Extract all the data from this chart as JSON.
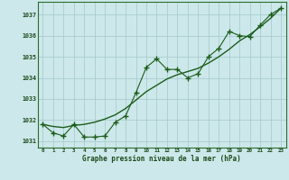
{
  "title": "Graphe pression niveau de la mer (hPa)",
  "background_color": "#cde8ea",
  "grid_color": "#a8cdd0",
  "line_color": "#1a5c1a",
  "xlim": [
    -0.5,
    23.5
  ],
  "ylim": [
    1030.7,
    1037.6
  ],
  "yticks": [
    1031,
    1032,
    1033,
    1034,
    1035,
    1036,
    1037
  ],
  "xticks": [
    0,
    1,
    2,
    3,
    4,
    5,
    6,
    7,
    8,
    9,
    10,
    11,
    12,
    13,
    14,
    15,
    16,
    17,
    18,
    19,
    20,
    21,
    22,
    23
  ],
  "hours": [
    0,
    1,
    2,
    3,
    4,
    5,
    6,
    7,
    8,
    9,
    10,
    11,
    12,
    13,
    14,
    15,
    16,
    17,
    18,
    19,
    20,
    21,
    22,
    23
  ],
  "pressure_main": [
    1031.8,
    1031.4,
    1031.25,
    1031.8,
    1031.2,
    1031.2,
    1031.25,
    1031.9,
    1032.2,
    1033.3,
    1034.5,
    1034.9,
    1034.4,
    1034.4,
    1034.0,
    1034.2,
    1035.0,
    1035.4,
    1036.2,
    1036.0,
    1035.95,
    1036.5,
    1037.0,
    1037.3
  ],
  "pressure_smooth": [
    1031.8,
    1031.7,
    1031.65,
    1031.75,
    1031.8,
    1031.9,
    1032.05,
    1032.25,
    1032.55,
    1032.95,
    1033.35,
    1033.65,
    1033.95,
    1034.15,
    1034.3,
    1034.45,
    1034.7,
    1035.0,
    1035.35,
    1035.75,
    1036.05,
    1036.42,
    1036.82,
    1037.3
  ]
}
